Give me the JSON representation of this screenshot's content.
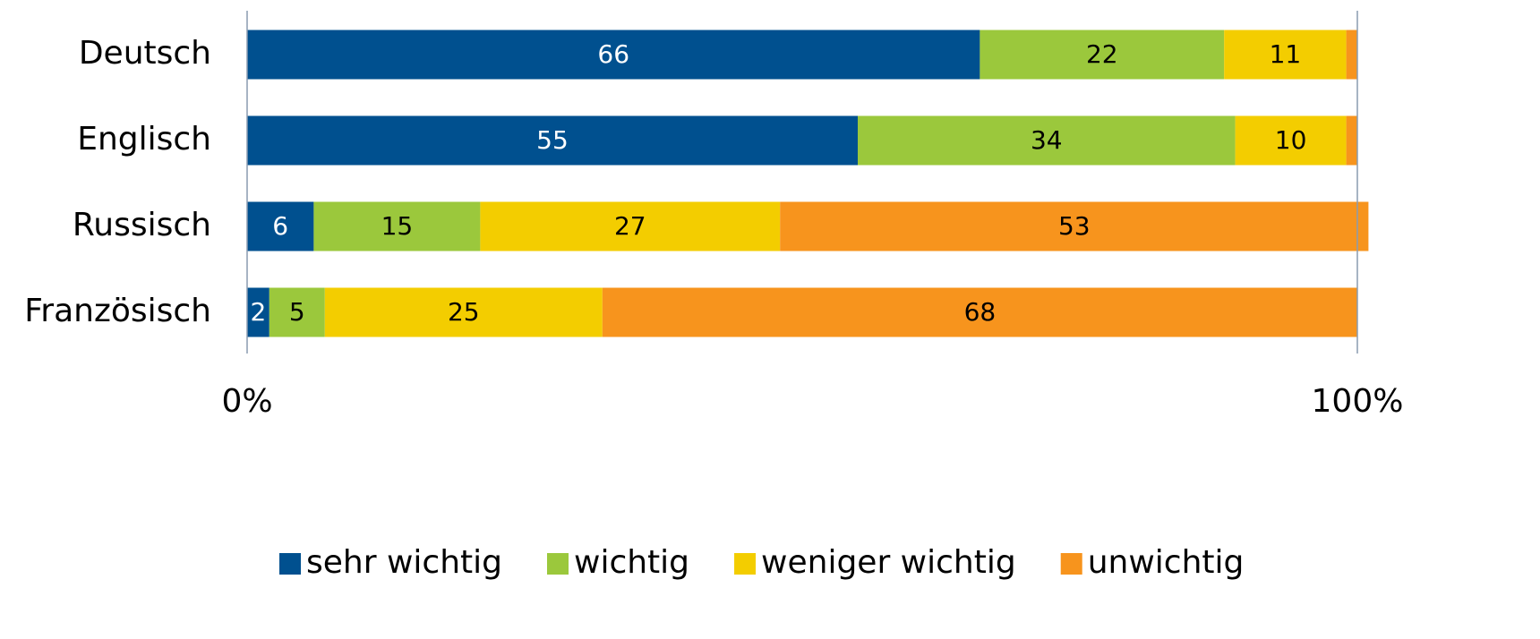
{
  "chart_data": {
    "type": "stacked-bar",
    "orientation": "horizontal",
    "categories": [
      "Deutsch",
      "Englisch",
      "Russisch",
      "Französisch"
    ],
    "series": [
      {
        "name": "sehr wichtig",
        "color": "#00508f",
        "values": [
          66,
          55,
          6,
          2
        ]
      },
      {
        "name": "wichtig",
        "color": "#9bc83c",
        "values": [
          22,
          34,
          15,
          5
        ]
      },
      {
        "name": "weniger wichtig",
        "color": "#f3cd00",
        "values": [
          11,
          10,
          27,
          25
        ]
      },
      {
        "name": "unwichtig",
        "color": "#f7941d",
        "values": [
          1,
          1,
          53,
          68
        ]
      }
    ],
    "xlim": [
      0,
      100
    ],
    "xticks": [
      {
        "value": 0,
        "label": "0%"
      },
      {
        "value": 100,
        "label": "100%"
      }
    ],
    "legend": "bottom"
  }
}
